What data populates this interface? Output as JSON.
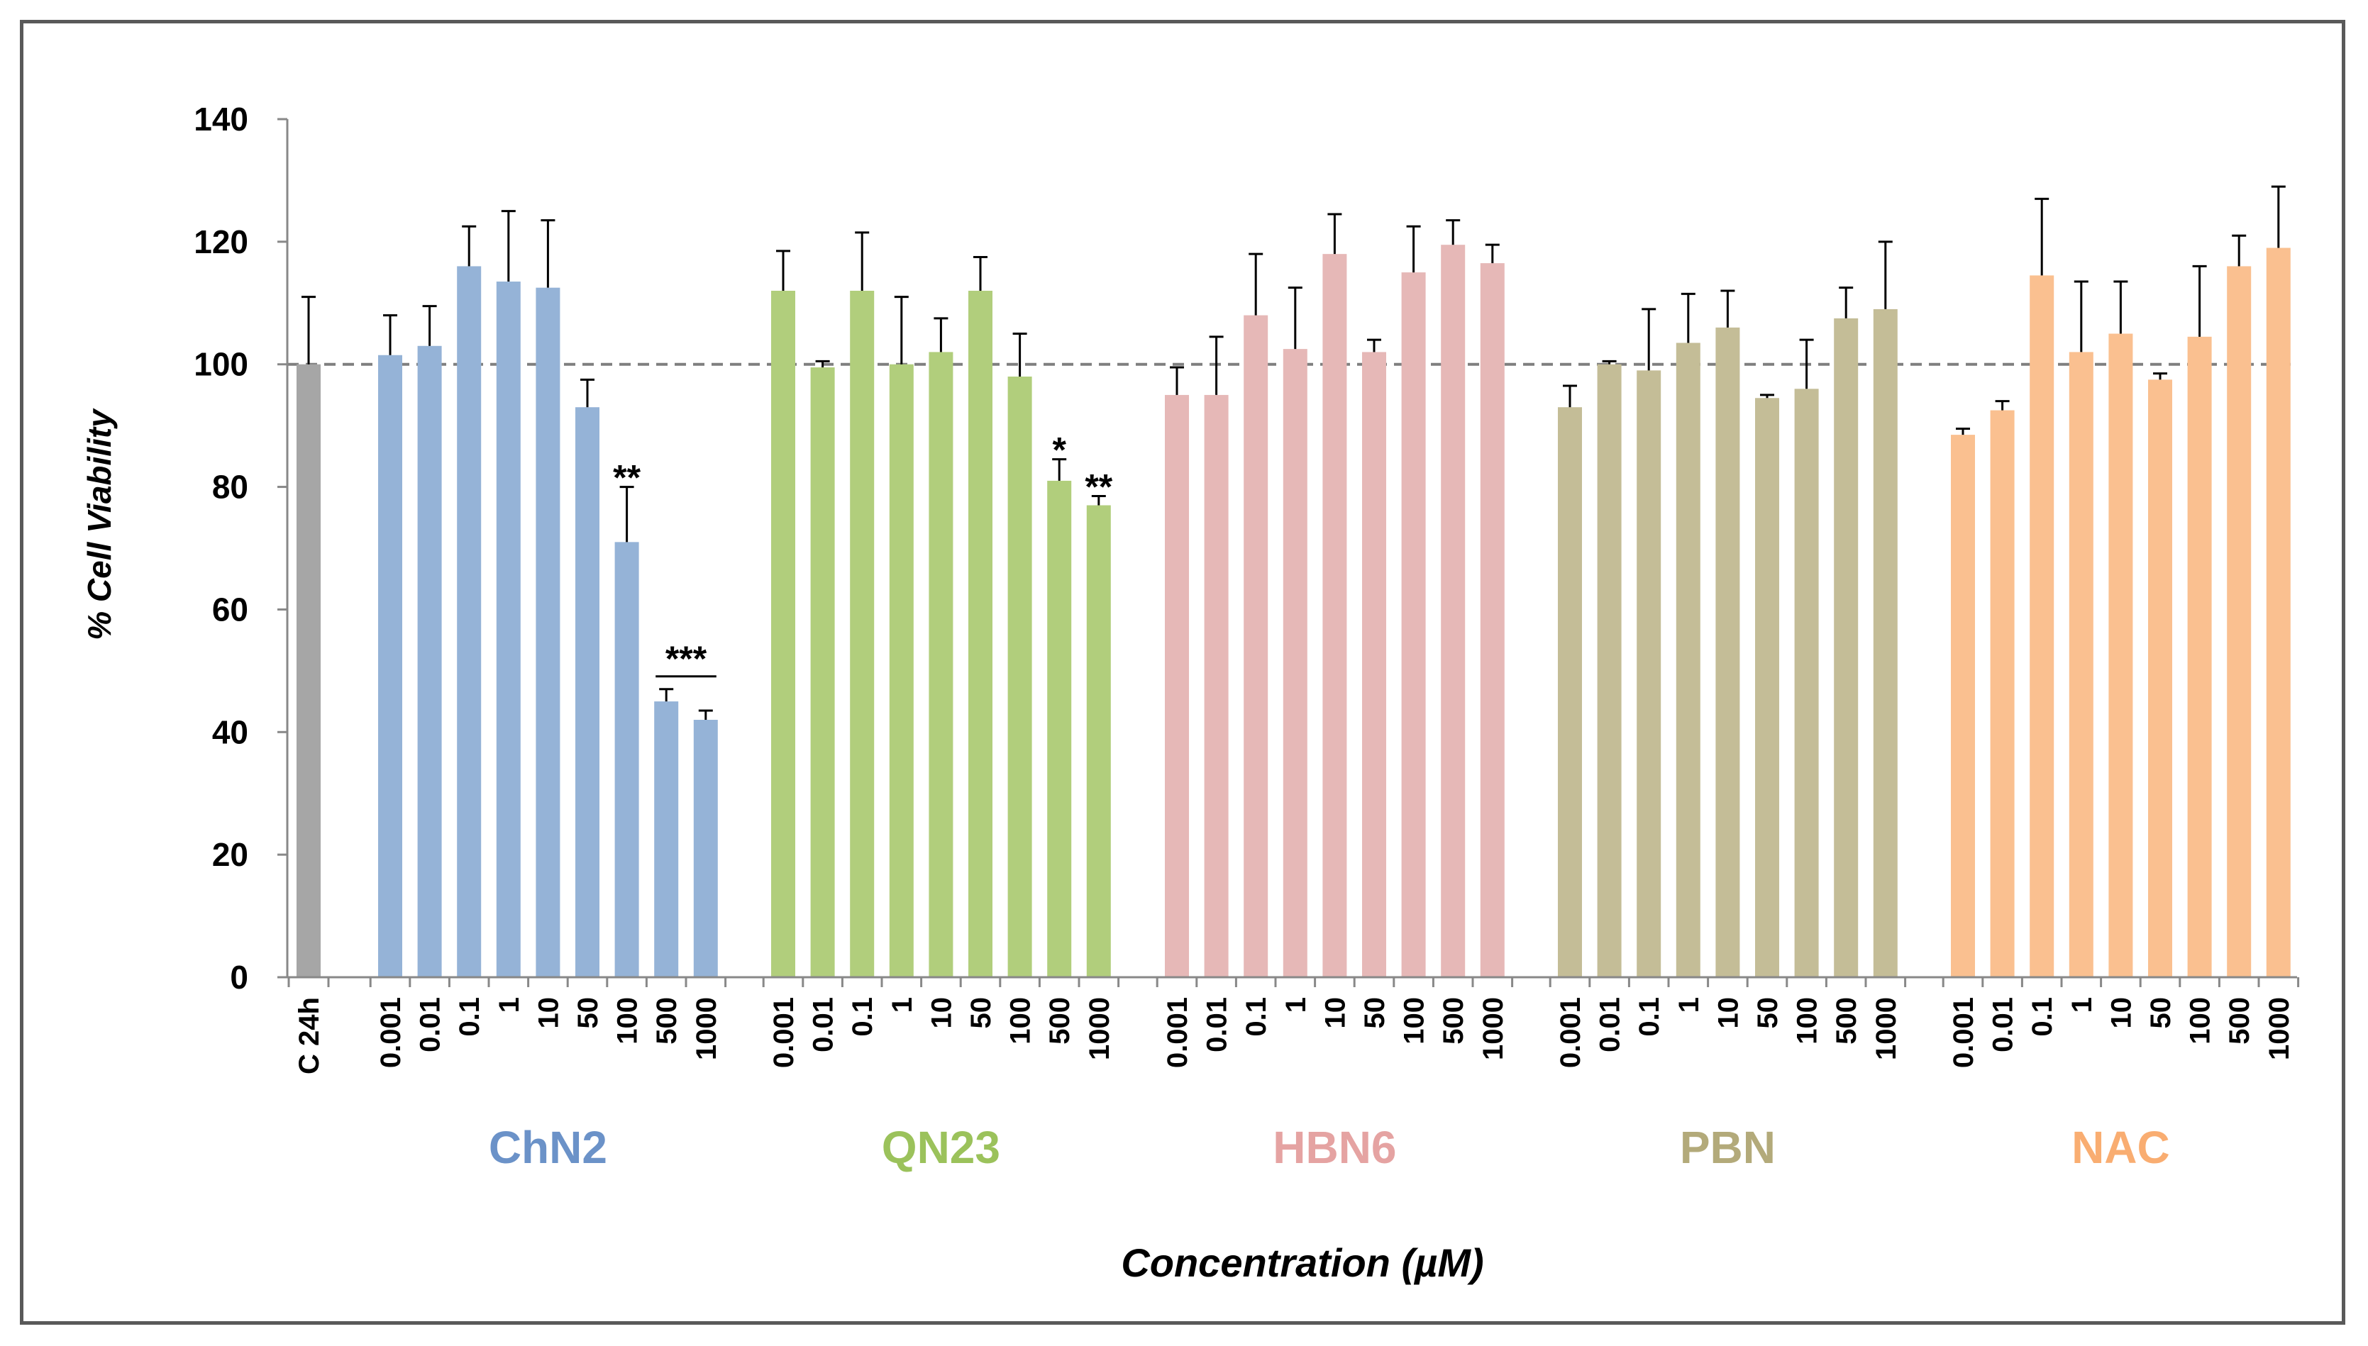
{
  "chart_data": {
    "type": "bar",
    "title": "",
    "ylabel": "% Cell Viability",
    "xlabel": "Concentration (µM)",
    "ylim": [
      0,
      140
    ],
    "yticks": [
      0,
      20,
      40,
      60,
      80,
      100,
      120,
      140
    ],
    "reference_line": 100,
    "control": {
      "label": "C 24h",
      "value": 100,
      "error": 11,
      "color": "#A6A6A6"
    },
    "concentrations": [
      "0.001",
      "0.01",
      "0.1",
      "1",
      "10",
      "50",
      "100",
      "500",
      "1000"
    ],
    "groups": [
      {
        "name": "ChN2",
        "color": "#95B3D7",
        "label_color": "#6B92C8",
        "values": [
          101.5,
          103,
          116,
          113.5,
          112.5,
          93,
          71,
          45,
          42
        ],
        "errors": [
          6.5,
          6.5,
          6.5,
          11.5,
          11,
          4.5,
          9,
          2,
          1.5
        ],
        "significance": [
          "",
          "",
          "",
          "",
          "",
          "",
          "**",
          "***",
          "***"
        ]
      },
      {
        "name": "QN23",
        "color": "#B1CE7C",
        "label_color": "#9BC25B",
        "values": [
          112,
          99.5,
          112,
          100,
          102,
          112,
          98,
          81,
          77
        ],
        "errors": [
          6.5,
          1,
          9.5,
          11,
          5.5,
          5.5,
          7,
          3.5,
          1.5
        ],
        "significance": [
          "",
          "",
          "",
          "",
          "",
          "",
          "",
          "*",
          "**"
        ]
      },
      {
        "name": "HBN6",
        "color": "#E6B8B7",
        "label_color": "#E5A3A2",
        "values": [
          95,
          95,
          108,
          102.5,
          118,
          102,
          115,
          119.5,
          116.5
        ],
        "errors": [
          4.5,
          9.5,
          10,
          10,
          6.5,
          2,
          7.5,
          4,
          3
        ],
        "significance": [
          "",
          "",
          "",
          "",
          "",
          "",
          "",
          "",
          ""
        ]
      },
      {
        "name": "PBN",
        "color": "#C4BD97",
        "label_color": "#B3AA7A",
        "values": [
          93,
          100,
          99,
          103.5,
          106,
          94.5,
          96,
          107.5,
          109
        ],
        "errors": [
          3.5,
          0.5,
          10,
          8,
          6,
          0.5,
          8,
          5,
          11
        ],
        "significance": [
          "",
          "",
          "",
          "",
          "",
          "",
          "",
          "",
          ""
        ]
      },
      {
        "name": "NAC",
        "color": "#FAC090",
        "label_color": "#F9AD71",
        "values": [
          88.5,
          92.5,
          114.5,
          102,
          105,
          97.5,
          104.5,
          116,
          119
        ],
        "errors": [
          1,
          1.5,
          12.5,
          11.5,
          8.5,
          1,
          11.5,
          5,
          10
        ],
        "significance": [
          "",
          "",
          "",
          "",
          "",
          "",
          "",
          "",
          ""
        ]
      }
    ]
  }
}
